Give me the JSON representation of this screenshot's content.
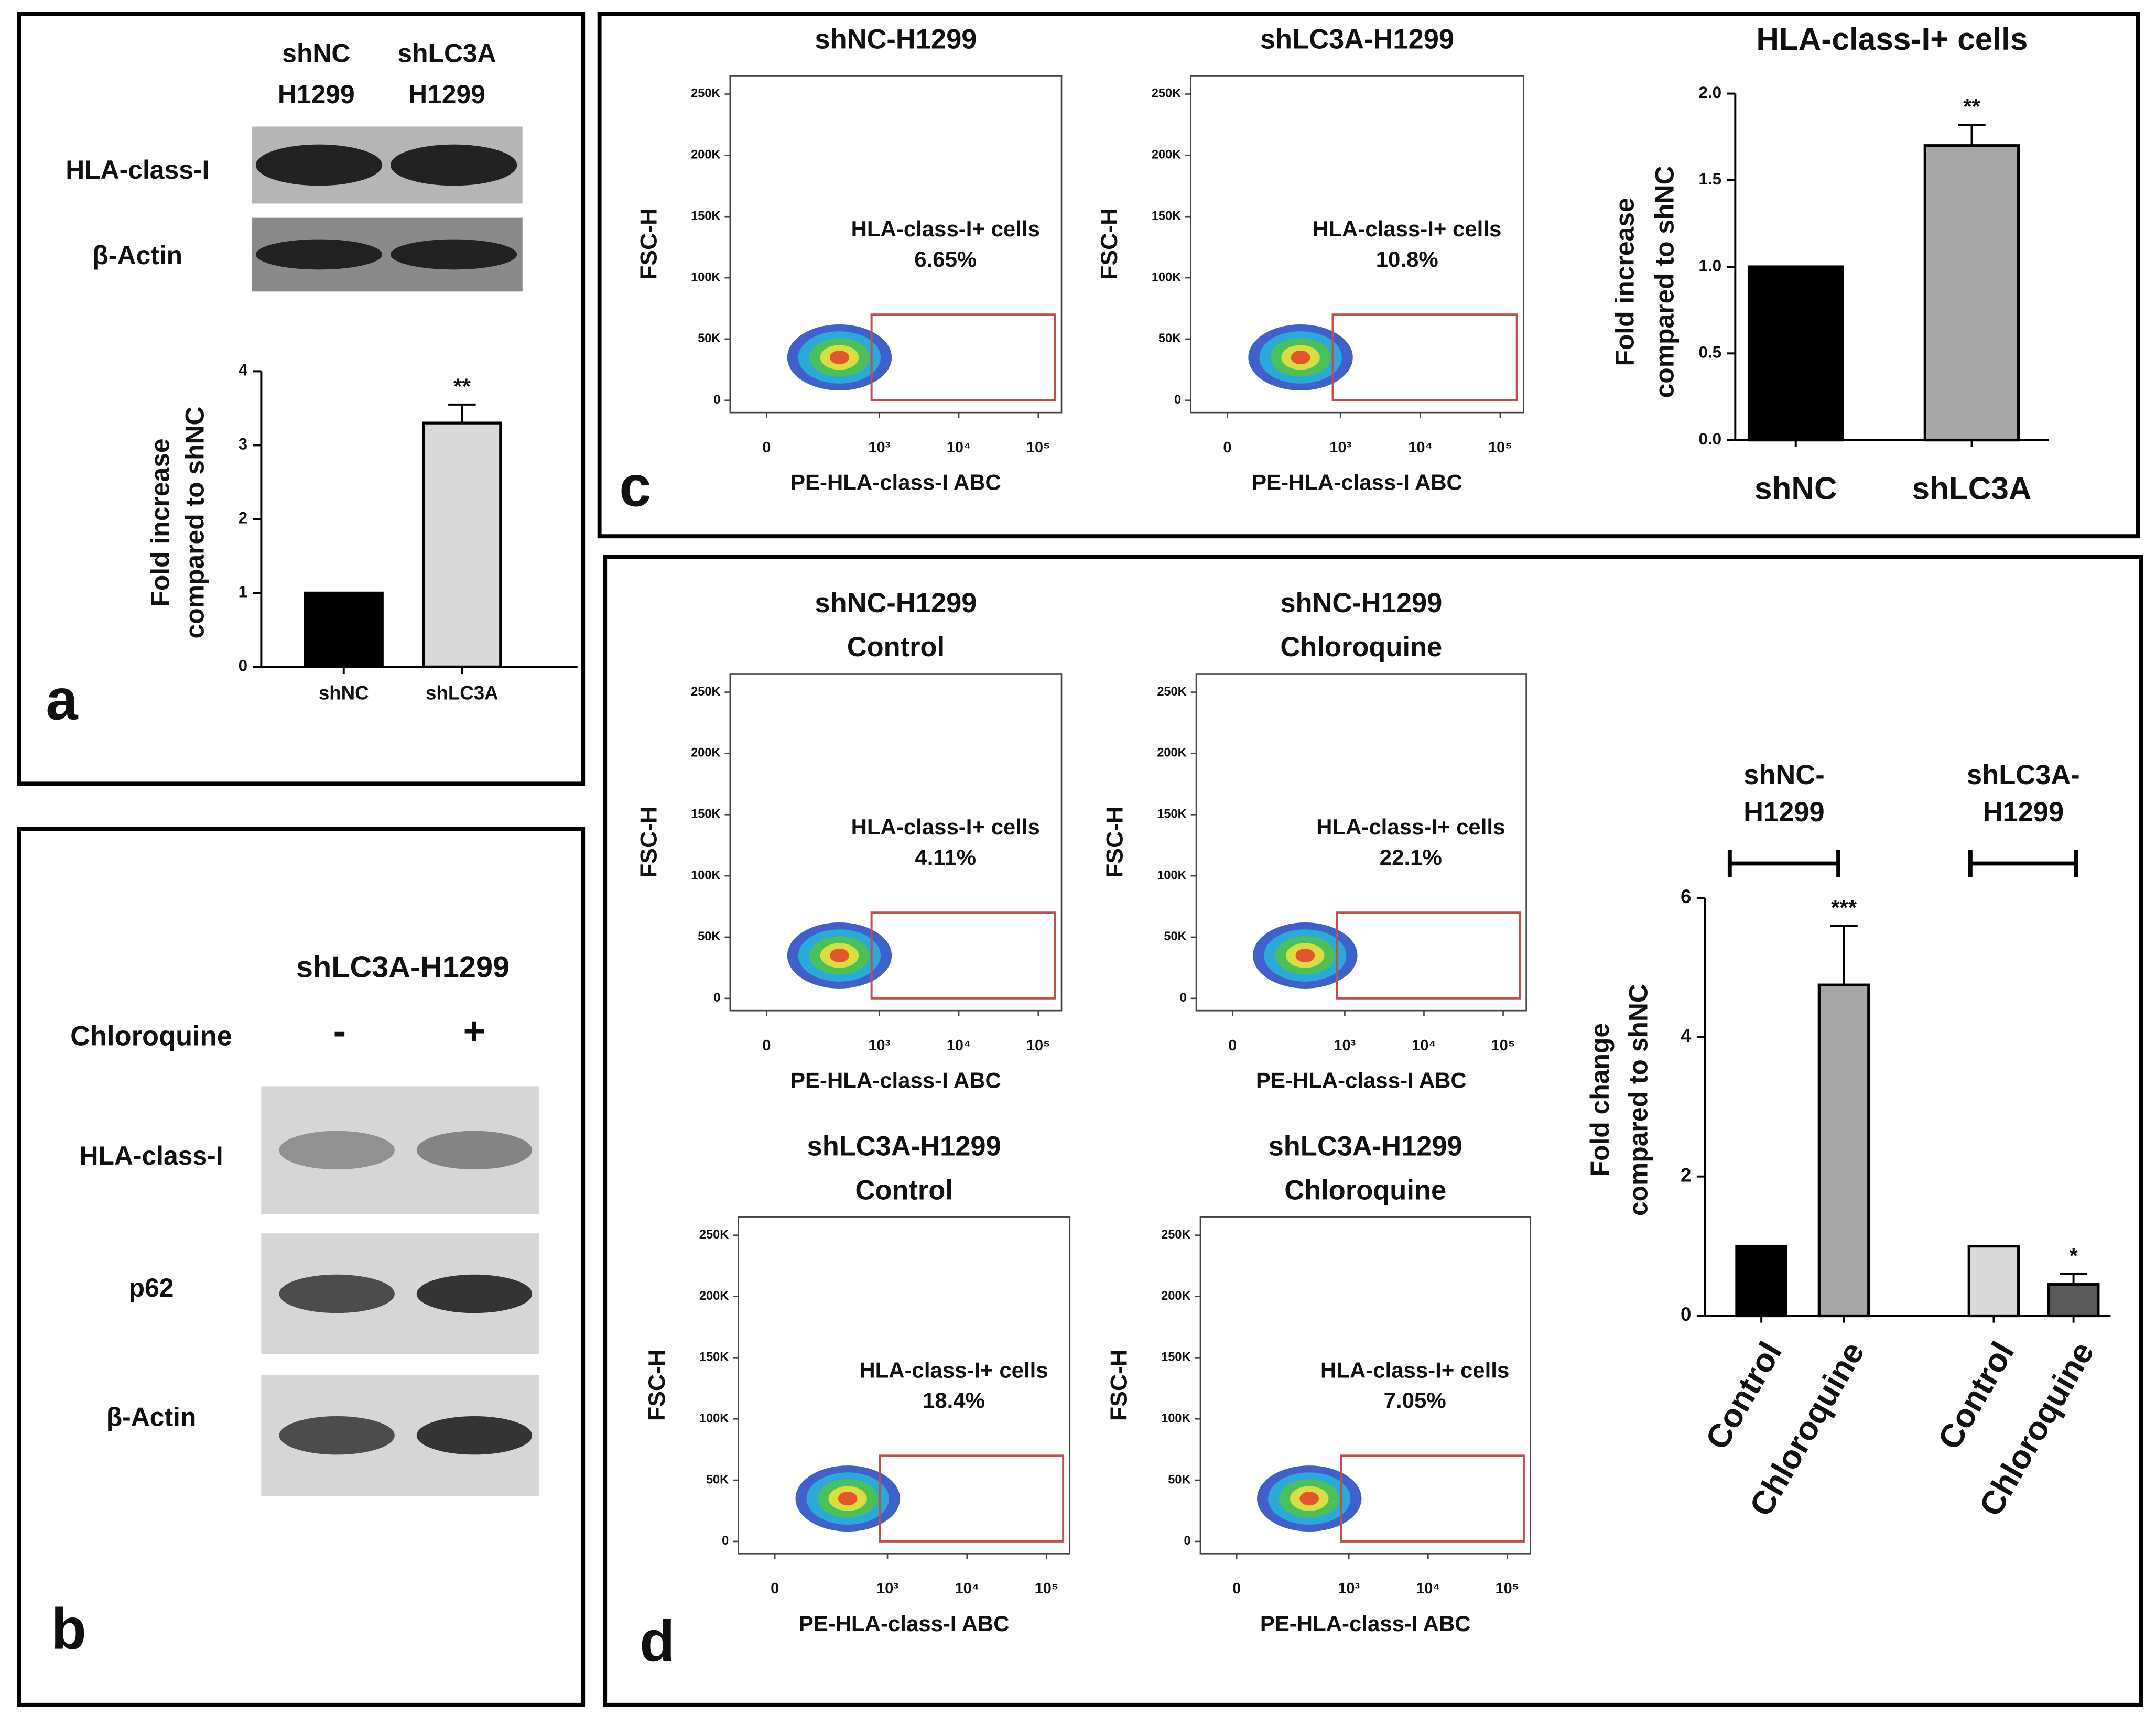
{
  "panel_letters": [
    "a",
    "b",
    "c",
    "d"
  ],
  "blots": [
    {
      "column_labels": [
        [
          "shNC",
          "H1299"
        ],
        [
          "shLC3A",
          "H1299"
        ]
      ],
      "row_labels": [
        "HLA-class-I",
        "β-Actin"
      ]
    },
    {
      "title": "shLC3A-H1299",
      "treatment": "Chloroquine",
      "conditions": [
        "-",
        "+"
      ],
      "row_labels": [
        "HLA-class-I",
        "p62",
        "β-Actin"
      ]
    }
  ],
  "flow_axes": {
    "ylabel": "FSC-H",
    "xlabel": "PE-HLA-class-I ABC",
    "ylim": [
      -10000,
      265000
    ],
    "yticks": [
      0,
      {
        "value": 50000,
        "label": "50K"
      },
      {
        "value": 100000,
        "label": "100K"
      },
      {
        "value": 150000,
        "label": "150K"
      },
      {
        "value": 200000,
        "label": "200K"
      },
      {
        "value": 250000,
        "label": "250K"
      }
    ],
    "xticks": [
      0,
      {
        "value": 1000,
        "label": "10³"
      },
      {
        "value": 10000,
        "label": "10⁴"
      },
      {
        "value": 100000,
        "label": "10⁵"
      }
    ]
  },
  "flow_plots": [
    {
      "title": [
        "shNC-H1299"
      ],
      "gate_label": "HLA-class-I+ cells",
      "gate_value": "6.65%"
    },
    {
      "title": [
        "shLC3A-H1299"
      ],
      "gate_label": "HLA-class-I+ cells",
      "gate_value": "10.8%"
    },
    {
      "title": [
        "shNC-H1299",
        "Control"
      ],
      "gate_label": "HLA-class-I+ cells",
      "gate_value": "4.11%"
    },
    {
      "title": [
        "shNC-H1299",
        "Chloroquine"
      ],
      "gate_label": "HLA-class-I+ cells",
      "gate_value": "22.1%"
    },
    {
      "title": [
        "shLC3A-H1299",
        "Control"
      ],
      "gate_label": "HLA-class-I+ cells",
      "gate_value": "18.4%"
    },
    {
      "title": [
        "shLC3A-H1299",
        "Chloroquine"
      ],
      "gate_label": "HLA-class-I+ cells",
      "gate_value": "7.05%"
    }
  ],
  "chart_data": [
    {
      "type": "bar",
      "categories": [
        "shNC",
        "shLC3A"
      ],
      "values": [
        1,
        3.3
      ],
      "errors": [
        null,
        0.25
      ],
      "annotations": [
        null,
        "**"
      ],
      "colors": [
        "#000000",
        "#d9d9d9"
      ],
      "ylabel": [
        "Fold increase",
        "compared to shNC"
      ],
      "ylim": [
        0,
        4
      ],
      "yticks": [
        0,
        1,
        2,
        3,
        4
      ]
    },
    {
      "type": "bar",
      "title": "HLA-class-I+ cells",
      "categories": [
        "shNC",
        "shLC3A"
      ],
      "values": [
        1,
        1.7
      ],
      "errors": [
        null,
        0.12
      ],
      "annotations": [
        null,
        "**"
      ],
      "colors": [
        "#000000",
        "#a6a6a6"
      ],
      "ylabel": [
        "Fold increase",
        "compared to shNC"
      ],
      "ylim": [
        0,
        2
      ],
      "yticks": [
        {
          "value": 0,
          "label": "0.0"
        },
        {
          "value": 0.5,
          "label": "0.5"
        },
        {
          "value": 1,
          "label": "1.0"
        },
        {
          "value": 1.5,
          "label": "1.5"
        },
        {
          "value": 2,
          "label": "2.0"
        }
      ]
    },
    {
      "type": "bar",
      "categories": [
        "Control",
        "Chloroquine",
        "Control",
        "Chloroquine"
      ],
      "values": [
        1,
        4.75,
        1,
        0.45
      ],
      "errors": [
        null,
        0.85,
        null,
        0.15
      ],
      "annotations": [
        null,
        "***",
        null,
        "*"
      ],
      "colors": [
        "#000000",
        "#a6a6a6",
        "#d9d9d9",
        "#595959"
      ],
      "group_labels": [
        [
          "shNC-",
          "H1299"
        ],
        [
          "shLC3A-",
          "H1299"
        ]
      ],
      "ylabel": [
        "Fold change",
        "compared to shNC"
      ],
      "ylim": [
        0,
        6
      ],
      "yticks": [
        0,
        2,
        4,
        6
      ]
    }
  ]
}
